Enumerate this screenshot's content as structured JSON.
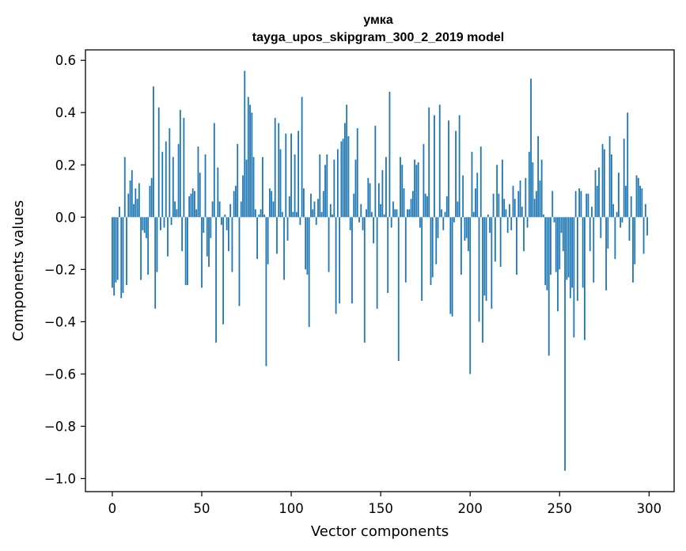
{
  "chart_data": {
    "type": "bar",
    "title": "умка",
    "subtitle": "tayga_upos_skipgram_300_2_2019 model",
    "xlabel": "Vector components",
    "ylabel": "Components values",
    "xlim": [
      -15,
      314
    ],
    "ylim": [
      -1.05,
      0.64
    ],
    "xticks": [
      0,
      50,
      100,
      150,
      200,
      250,
      300
    ],
    "yticks": [
      -1.0,
      -0.8,
      -0.6,
      -0.4,
      -0.2,
      0.0,
      0.2,
      0.4,
      0.6
    ],
    "ytick_labels": [
      "−1.0",
      "−0.8",
      "−0.6",
      "−0.4",
      "−0.2",
      "0.0",
      "0.2",
      "0.4",
      "0.6"
    ],
    "grid": false,
    "bar_color": "#1f77b4",
    "values": [
      -0.27,
      -0.3,
      -0.25,
      -0.24,
      0.04,
      -0.31,
      -0.29,
      0.23,
      -0.26,
      0.09,
      0.14,
      0.18,
      0.05,
      0.11,
      0.07,
      0.13,
      -0.24,
      -0.05,
      -0.06,
      -0.08,
      -0.22,
      0.12,
      0.15,
      0.5,
      -0.35,
      -0.21,
      0.42,
      -0.05,
      0.25,
      -0.04,
      0.29,
      -0.15,
      0.34,
      -0.03,
      0.23,
      0.06,
      0.03,
      0.28,
      0.41,
      -0.13,
      0.38,
      -0.26,
      -0.26,
      0.08,
      0.09,
      0.11,
      0.1,
      0.03,
      0.27,
      0.17,
      -0.27,
      -0.06,
      0.24,
      -0.15,
      -0.19,
      -0.08,
      0.06,
      0.36,
      -0.48,
      0.19,
      0.06,
      -0.03,
      -0.41,
      0.01,
      -0.05,
      -0.13,
      0.05,
      -0.21,
      0.1,
      0.12,
      0.28,
      -0.34,
      0.06,
      0.16,
      0.56,
      0.22,
      0.46,
      0.43,
      0.4,
      0.23,
      0.03,
      -0.16,
      0.01,
      0.03,
      0.23,
      0.01,
      -0.57,
      -0.18,
      0.11,
      0.1,
      0.06,
      0.38,
      -0.14,
      0.36,
      0.26,
      0.02,
      -0.24,
      0.32,
      -0.09,
      0.08,
      0.32,
      0.02,
      0.24,
      0.02,
      0.33,
      -0.03,
      0.46,
      0.11,
      -0.2,
      -0.22,
      -0.42,
      0.09,
      0.03,
      0.06,
      -0.03,
      0.07,
      0.24,
      0.02,
      0.1,
      0.2,
      0.24,
      -0.21,
      0.05,
      0.01,
      0.22,
      -0.37,
      0.26,
      -0.33,
      0.29,
      0.3,
      0.36,
      0.43,
      0.31,
      -0.05,
      -0.33,
      0.09,
      0.22,
      0.34,
      -0.02,
      0.05,
      -0.05,
      -0.48,
      0.03,
      0.15,
      0.13,
      0.02,
      -0.1,
      0.35,
      -0.35,
      0.13,
      0.05,
      0.18,
      0.01,
      0.23,
      -0.29,
      0.48,
      -0.04,
      0.06,
      0.03,
      0.03,
      -0.55,
      0.23,
      0.2,
      0.11,
      -0.25,
      0.03,
      0.03,
      0.07,
      0.1,
      0.22,
      0.2,
      0.21,
      -0.04,
      -0.32,
      0.28,
      0.09,
      0.08,
      0.42,
      -0.26,
      -0.23,
      0.39,
      -0.18,
      -0.08,
      0.43,
      0.03,
      -0.05,
      0.02,
      0.08,
      0.37,
      -0.37,
      -0.38,
      -0.02,
      0.33,
      0.06,
      0.39,
      -0.22,
      0.16,
      -0.09,
      -0.08,
      -0.13,
      -0.6,
      0.25,
      0.02,
      0.11,
      0.17,
      -0.4,
      0.27,
      -0.48,
      -0.3,
      -0.32,
      0.01,
      -0.06,
      -0.35,
      0.09,
      -0.17,
      0.2,
      0.09,
      -0.19,
      0.22,
      0.07,
      0.03,
      -0.06,
      0.05,
      -0.05,
      0.12,
      0.07,
      -0.22,
      0.1,
      0.14,
      0.04,
      -0.13,
      0.15,
      -0.04,
      0.25,
      0.53,
      0.21,
      0.07,
      0.1,
      0.31,
      0.14,
      0.22,
      0.01,
      -0.26,
      -0.28,
      -0.53,
      -0.22,
      0.1,
      -0.02,
      -0.21,
      -0.36,
      -0.2,
      -0.06,
      -0.13,
      -0.97,
      -0.24,
      -0.23,
      -0.31,
      -0.27,
      -0.46,
      0.1,
      -0.32,
      0.11,
      0.1,
      -0.27,
      -0.47,
      0.09,
      0.09,
      -0.13,
      0.04,
      -0.25,
      0.18,
      0.12,
      0.19,
      -0.08,
      0.28,
      0.26,
      -0.28,
      -0.12,
      0.31,
      0.24,
      0.05,
      -0.16,
      0.02,
      0.17,
      -0.04,
      -0.02,
      0.3,
      0.12,
      0.4,
      -0.09,
      0.08,
      -0.25,
      -0.18,
      0.16,
      0.15,
      0.12,
      0.11,
      -0.14,
      0.05,
      -0.07
    ]
  }
}
